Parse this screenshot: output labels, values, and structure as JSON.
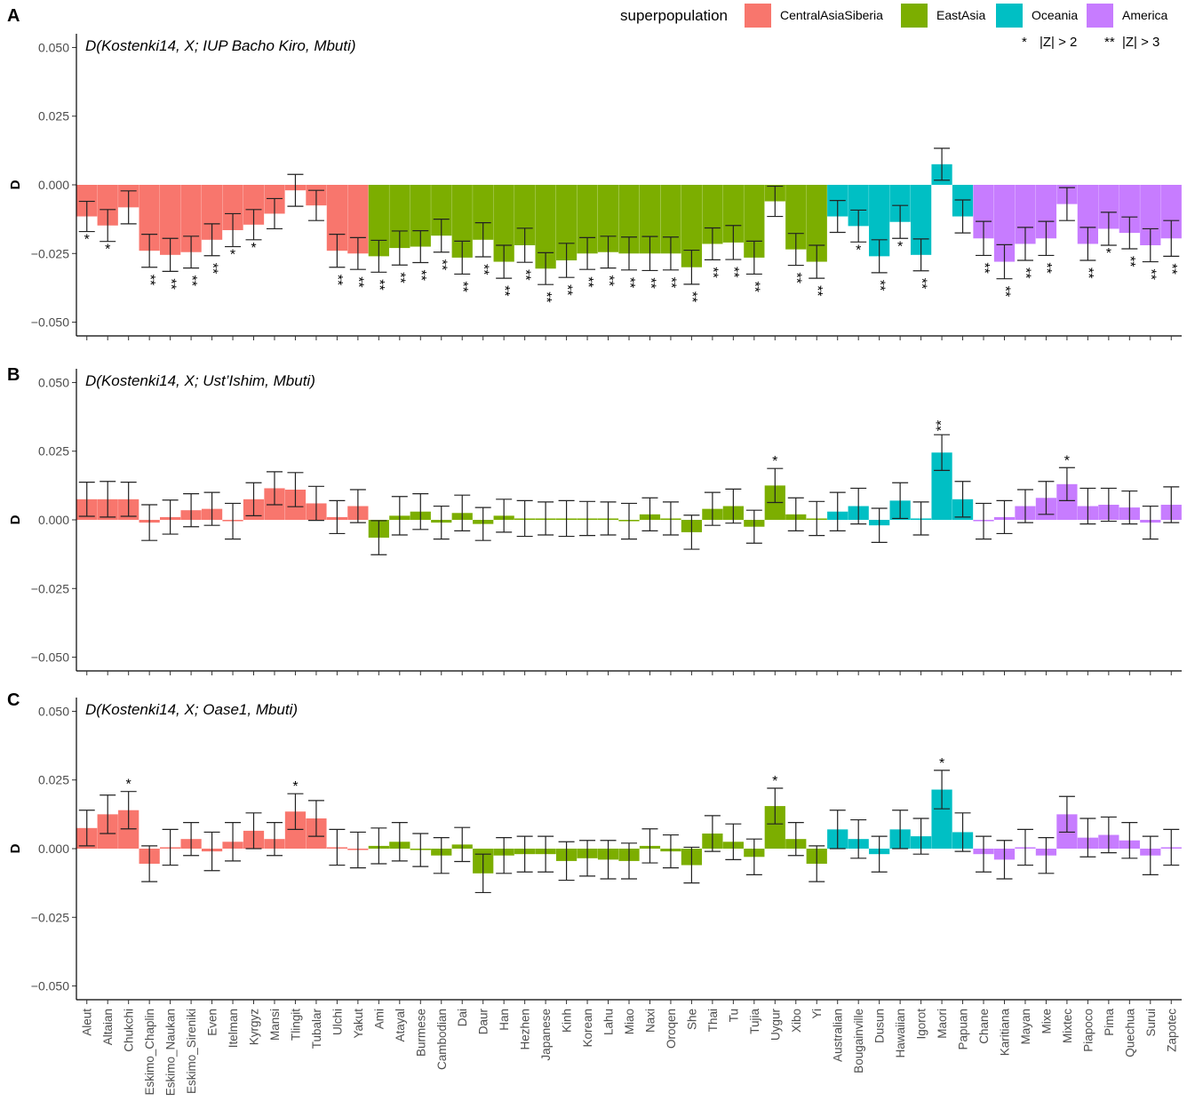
{
  "legend": {
    "title": "superpopulation",
    "entries": [
      {
        "label": "CentralAsiaSiberia",
        "color": "#F8766D"
      },
      {
        "label": "EastAsia",
        "color": "#7CAE00"
      },
      {
        "label": "Oceania",
        "color": "#00BFC4"
      },
      {
        "label": "America",
        "color": "#C77CFF"
      }
    ],
    "significance": [
      {
        "symbol": "*",
        "label": "|Z| > 2"
      },
      {
        "symbol": "**",
        "label": "|Z| > 3"
      }
    ]
  },
  "chart_data": [
    {
      "type": "bar",
      "panel": "A",
      "title": "D(Kostenki14, X; IUP Bacho Kiro, Mbuti)",
      "xlabel": "",
      "ylabel": "D",
      "ylim": [
        -0.055,
        0.055
      ],
      "yticks": [
        "0.050",
        "0.025",
        "0.000",
        "−0.025",
        "−0.050"
      ],
      "ytick_values": [
        0.05,
        0.025,
        0,
        -0.025,
        -0.05
      ],
      "categories": [
        "Aleut",
        "Altaian",
        "Chukchi",
        "Eskimo_Chaplin",
        "Eskimo_Naukan",
        "Eskimo_Sireniki",
        "Even",
        "Itelman",
        "Kyrgyz",
        "Mansi",
        "Tlingit",
        "Tubalar",
        "Ulchi",
        "Yakut",
        "Ami",
        "Atayal",
        "Burmese",
        "Cambodian",
        "Dai",
        "Daur",
        "Han",
        "Hezhen",
        "Japanese",
        "Kinh",
        "Korean",
        "Lahu",
        "Miao",
        "Naxi",
        "Oroqen",
        "She",
        "Thai",
        "Tu",
        "Tujia",
        "Uygur",
        "Xibo",
        "Yi",
        "Australian",
        "Bougainville",
        "Dusun",
        "Hawaiian",
        "Igorot",
        "Maori",
        "Papuan",
        "Chane",
        "Karitiana",
        "Mayan",
        "Mixe",
        "Mixtec",
        "Piapoco",
        "Pima",
        "Quechua",
        "Surui",
        "Zapotec"
      ],
      "groups": [
        "CentralAsiaSiberia",
        "CentralAsiaSiberia",
        "CentralAsiaSiberia",
        "CentralAsiaSiberia",
        "CentralAsiaSiberia",
        "CentralAsiaSiberia",
        "CentralAsiaSiberia",
        "CentralAsiaSiberia",
        "CentralAsiaSiberia",
        "CentralAsiaSiberia",
        "CentralAsiaSiberia",
        "CentralAsiaSiberia",
        "CentralAsiaSiberia",
        "CentralAsiaSiberia",
        "EastAsia",
        "EastAsia",
        "EastAsia",
        "EastAsia",
        "EastAsia",
        "EastAsia",
        "EastAsia",
        "EastAsia",
        "EastAsia",
        "EastAsia",
        "EastAsia",
        "EastAsia",
        "EastAsia",
        "EastAsia",
        "EastAsia",
        "EastAsia",
        "EastAsia",
        "EastAsia",
        "EastAsia",
        "EastAsia",
        "EastAsia",
        "EastAsia",
        "Oceania",
        "Oceania",
        "Oceania",
        "Oceania",
        "Oceania",
        "Oceania",
        "Oceania",
        "America",
        "America",
        "America",
        "America",
        "America",
        "America",
        "America",
        "America",
        "America",
        "America"
      ],
      "values": [
        -0.0115,
        -0.0148,
        -0.0082,
        -0.024,
        -0.0255,
        -0.0245,
        -0.02,
        -0.0165,
        -0.0145,
        -0.0105,
        -0.002,
        -0.0075,
        -0.024,
        -0.025,
        -0.026,
        -0.023,
        -0.0225,
        -0.0185,
        -0.0265,
        -0.02,
        -0.028,
        -0.022,
        -0.0305,
        -0.0275,
        -0.025,
        -0.0245,
        -0.025,
        -0.025,
        -0.025,
        -0.03,
        -0.0215,
        -0.021,
        -0.0265,
        -0.006,
        -0.0235,
        -0.028,
        -0.0115,
        -0.015,
        -0.026,
        -0.0135,
        -0.0255,
        0.0075,
        -0.0115,
        -0.0195,
        -0.028,
        -0.0215,
        -0.0195,
        -0.007,
        -0.0215,
        -0.016,
        -0.0175,
        -0.022,
        -0.0195
      ],
      "errors": [
        0.0055,
        0.0058,
        0.006,
        0.006,
        0.006,
        0.0058,
        0.0058,
        0.006,
        0.0055,
        0.0055,
        0.0058,
        0.0055,
        0.006,
        0.0058,
        0.0058,
        0.0062,
        0.0058,
        0.006,
        0.006,
        0.0062,
        0.006,
        0.0062,
        0.0058,
        0.0062,
        0.0058,
        0.0058,
        0.006,
        0.0062,
        0.006,
        0.0062,
        0.0058,
        0.0062,
        0.006,
        0.0055,
        0.0058,
        0.006,
        0.0058,
        0.0058,
        0.006,
        0.006,
        0.0058,
        0.0058,
        0.006,
        0.0062,
        0.0062,
        0.006,
        0.0062,
        0.006,
        0.006,
        0.006,
        0.0058,
        0.006,
        0.0065
      ],
      "significance": [
        "*",
        "*",
        "",
        "**",
        "**",
        "**",
        "**",
        "*",
        "*",
        "",
        "",
        "",
        "**",
        "**",
        "**",
        "**",
        "**",
        "**",
        "**",
        "**",
        "**",
        "**",
        "**",
        "**",
        "**",
        "**",
        "**",
        "**",
        "**",
        "**",
        "**",
        "**",
        "**",
        "",
        "**",
        "**",
        "",
        "*",
        "**",
        "*",
        "**",
        "",
        "",
        "**",
        "**",
        "**",
        "**",
        "",
        "**",
        "*",
        "**",
        "**",
        "**"
      ]
    },
    {
      "type": "bar",
      "panel": "B",
      "title": "D(Kostenki14, X; Ust’Ishim, Mbuti)",
      "xlabel": "",
      "ylabel": "D",
      "ylim": [
        -0.055,
        0.055
      ],
      "yticks": [
        "0.050",
        "0.025",
        "0.000",
        "−0.025",
        "−0.050"
      ],
      "ytick_values": [
        0.05,
        0.025,
        0,
        -0.025,
        -0.05
      ],
      "values": [
        0.0075,
        0.0075,
        0.0075,
        -0.001,
        0.001,
        0.0035,
        0.004,
        -0.0005,
        0.0075,
        0.0115,
        0.011,
        0.006,
        0.001,
        0.005,
        -0.0065,
        0.0015,
        0.003,
        -0.001,
        0.0025,
        -0.0015,
        0.0015,
        0.0005,
        0.0005,
        0.0005,
        0.0005,
        0.0005,
        -0.0005,
        0.002,
        0.0005,
        -0.0045,
        0.004,
        0.005,
        -0.0025,
        0.0125,
        0.002,
        0.0005,
        0.003,
        0.005,
        -0.002,
        0.007,
        0.0005,
        0.0245,
        0.0075,
        -0.0005,
        0.001,
        0.005,
        0.008,
        0.013,
        0.005,
        0.0055,
        0.0045,
        -0.001,
        0.0055
      ],
      "errors": [
        0.0062,
        0.0065,
        0.0062,
        0.0065,
        0.0062,
        0.006,
        0.006,
        0.0065,
        0.006,
        0.006,
        0.0062,
        0.0062,
        0.006,
        0.006,
        0.0062,
        0.007,
        0.0065,
        0.006,
        0.0065,
        0.006,
        0.006,
        0.0065,
        0.006,
        0.0065,
        0.0062,
        0.006,
        0.0065,
        0.006,
        0.006,
        0.0062,
        0.006,
        0.0062,
        0.006,
        0.0062,
        0.006,
        0.0062,
        0.007,
        0.0065,
        0.0062,
        0.0065,
        0.006,
        0.0065,
        0.0065,
        0.0065,
        0.006,
        0.006,
        0.006,
        0.006,
        0.0065,
        0.006,
        0.006,
        0.006,
        0.0065
      ],
      "significance": [
        "",
        "",
        "",
        "",
        "",
        "",
        "",
        "",
        "",
        "",
        "",
        "",
        "",
        "",
        "",
        "",
        "",
        "",
        "",
        "",
        "",
        "",
        "",
        "",
        "",
        "",
        "",
        "",
        "",
        "",
        "",
        "",
        "",
        "*",
        "",
        "",
        "",
        "",
        "",
        "",
        "",
        "**",
        "",
        "",
        "",
        "",
        "",
        "*",
        "",
        "",
        "",
        "",
        ""
      ]
    },
    {
      "type": "bar",
      "panel": "C",
      "title": "D(Kostenki14, X; Oase1, Mbuti)",
      "xlabel": "",
      "ylabel": "D",
      "ylim": [
        -0.055,
        0.055
      ],
      "yticks": [
        "0.050",
        "0.025",
        "0.000",
        "−0.025",
        "−0.050"
      ],
      "ytick_values": [
        0.05,
        0.025,
        0,
        -0.025,
        -0.05
      ],
      "values": [
        0.0075,
        0.0125,
        0.014,
        -0.0055,
        0.0005,
        0.0035,
        -0.001,
        0.0025,
        0.0065,
        0.0035,
        0.0135,
        0.011,
        0.0005,
        -0.0005,
        0.001,
        0.0025,
        -0.0005,
        -0.0025,
        0.0015,
        -0.009,
        -0.0025,
        -0.002,
        -0.002,
        -0.0045,
        -0.0035,
        -0.004,
        -0.0045,
        0.001,
        -0.001,
        -0.006,
        0.0055,
        0.0025,
        -0.003,
        0.0155,
        0.0035,
        -0.0055,
        0.007,
        0.0035,
        -0.002,
        0.007,
        0.0045,
        0.0215,
        0.006,
        -0.002,
        -0.004,
        0.0005,
        -0.0025,
        0.0125,
        0.004,
        0.005,
        0.003,
        -0.0025,
        0.0005
      ],
      "errors": [
        0.0065,
        0.007,
        0.0068,
        0.0065,
        0.0065,
        0.006,
        0.007,
        0.007,
        0.0065,
        0.006,
        0.0065,
        0.0065,
        0.0065,
        0.0065,
        0.0065,
        0.007,
        0.006,
        0.0065,
        0.0062,
        0.007,
        0.0065,
        0.0065,
        0.0065,
        0.007,
        0.0065,
        0.007,
        0.0065,
        0.0062,
        0.006,
        0.0065,
        0.0065,
        0.0065,
        0.0065,
        0.0065,
        0.006,
        0.0065,
        0.007,
        0.007,
        0.0065,
        0.007,
        0.0065,
        0.007,
        0.007,
        0.0065,
        0.007,
        0.0065,
        0.0065,
        0.0065,
        0.007,
        0.0065,
        0.0065,
        0.007,
        0.0065
      ],
      "significance": [
        "",
        "",
        "*",
        "",
        "",
        "",
        "",
        "",
        "",
        "",
        "*",
        "",
        "",
        "",
        "",
        "",
        "",
        "",
        "",
        "",
        "",
        "",
        "",
        "",
        "",
        "",
        "",
        "",
        "",
        "",
        "",
        "",
        "",
        "*",
        "",
        "",
        "",
        "",
        "",
        "",
        "",
        "*",
        "",
        "",
        "",
        "",
        "",
        "",
        "",
        "",
        "",
        "",
        ""
      ]
    }
  ]
}
